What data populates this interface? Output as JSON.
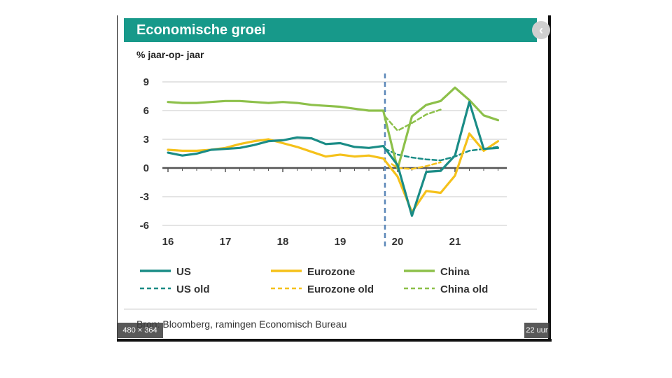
{
  "title": "Economische groei",
  "unit_label": "% jaar-op- jaar",
  "source": "Bron: Bloomberg, ramingen Economisch Bureau",
  "overlay": {
    "dimensions": "480 × 364",
    "time": "22 uur"
  },
  "colors": {
    "title_bg": "#17998a",
    "us": "#1a8c86",
    "eurozone": "#f5c11a",
    "china": "#8dc04a",
    "grid": "#c8c8c8",
    "divider": "#5b87b8"
  },
  "chart_data": {
    "type": "line",
    "title": "Economische groei",
    "ylabel": "% jaar-op- jaar",
    "xlabel": "",
    "ylim": [
      -6,
      9
    ],
    "yticks": [
      9,
      6,
      3,
      0,
      -3,
      -6
    ],
    "xlim": [
      16.0,
      21.9
    ],
    "x_tick_labels": [
      {
        "x": 16.0,
        "label": "16"
      },
      {
        "x": 17.0,
        "label": "17"
      },
      {
        "x": 18.0,
        "label": "18"
      },
      {
        "x": 19.0,
        "label": "19"
      },
      {
        "x": 20.0,
        "label": "20"
      },
      {
        "x": 21.0,
        "label": "21"
      }
    ],
    "forecast_divider_x": 19.78,
    "series": [
      {
        "name": "US",
        "style": "solid",
        "color_key": "us",
        "x": [
          16.0,
          16.25,
          16.5,
          16.75,
          17.0,
          17.25,
          17.5,
          17.75,
          18.0,
          18.25,
          18.5,
          18.75,
          19.0,
          19.25,
          19.5,
          19.75,
          20.0,
          20.25,
          20.5,
          20.75,
          21.0,
          21.25,
          21.5,
          21.75
        ],
        "y": [
          1.6,
          1.3,
          1.5,
          1.9,
          2.0,
          2.1,
          2.4,
          2.8,
          2.9,
          3.2,
          3.1,
          2.5,
          2.6,
          2.2,
          2.1,
          2.3,
          0.3,
          -5.0,
          -0.4,
          -0.3,
          1.3,
          6.9,
          2.0,
          2.1
        ]
      },
      {
        "name": "Eurozone",
        "style": "solid",
        "color_key": "eurozone",
        "x": [
          16.0,
          16.25,
          16.5,
          16.75,
          17.0,
          17.25,
          17.5,
          17.75,
          18.0,
          18.25,
          18.5,
          18.75,
          19.0,
          19.25,
          19.5,
          19.75,
          20.0,
          20.25,
          20.5,
          20.75,
          21.0,
          21.25,
          21.5,
          21.75
        ],
        "y": [
          1.9,
          1.8,
          1.8,
          1.9,
          2.1,
          2.5,
          2.8,
          3.0,
          2.6,
          2.2,
          1.7,
          1.2,
          1.4,
          1.2,
          1.3,
          1.0,
          -0.9,
          -4.6,
          -2.4,
          -2.6,
          -0.8,
          3.6,
          1.8,
          2.8
        ]
      },
      {
        "name": "China",
        "style": "solid",
        "color_key": "china",
        "x": [
          16.0,
          16.25,
          16.5,
          16.75,
          17.0,
          17.25,
          17.5,
          17.75,
          18.0,
          18.25,
          18.5,
          18.75,
          19.0,
          19.25,
          19.5,
          19.75,
          20.0,
          20.25,
          20.5,
          20.75,
          21.0,
          21.25,
          21.5,
          21.75
        ],
        "y": [
          6.9,
          6.8,
          6.8,
          6.9,
          7.0,
          7.0,
          6.9,
          6.8,
          6.9,
          6.8,
          6.6,
          6.5,
          6.4,
          6.2,
          6.0,
          6.0,
          -0.1,
          5.4,
          6.6,
          7.0,
          8.4,
          7.1,
          5.5,
          5.0
        ]
      },
      {
        "name": "US old",
        "style": "dashed",
        "color_key": "us",
        "x": [
          19.78,
          20.0,
          20.25,
          20.5,
          20.75,
          21.0,
          21.25,
          21.5,
          21.75
        ],
        "y": [
          2.0,
          1.4,
          1.1,
          0.9,
          0.8,
          1.2,
          1.8,
          2.0,
          2.2
        ]
      },
      {
        "name": "Eurozone old",
        "style": "dashed",
        "color_key": "eurozone",
        "x": [
          19.9,
          20.0,
          20.25,
          20.5,
          20.75
        ],
        "y": [
          0.4,
          0.0,
          -0.1,
          0.2,
          0.6
        ]
      },
      {
        "name": "China old",
        "style": "dashed",
        "color_key": "china",
        "x": [
          19.78,
          20.0,
          20.25,
          20.5,
          20.75
        ],
        "y": [
          5.4,
          3.9,
          4.7,
          5.6,
          6.1
        ]
      }
    ],
    "legend": [
      {
        "label": "US",
        "style": "solid",
        "color_key": "us"
      },
      {
        "label": "Eurozone",
        "style": "solid",
        "color_key": "eurozone"
      },
      {
        "label": "China",
        "style": "solid",
        "color_key": "china"
      },
      {
        "label": "US old",
        "style": "dashed",
        "color_key": "us"
      },
      {
        "label": "Eurozone old",
        "style": "dashed",
        "color_key": "eurozone"
      },
      {
        "label": "China old",
        "style": "dashed",
        "color_key": "china"
      }
    ],
    "grid": true,
    "legend_position": "bottom"
  }
}
